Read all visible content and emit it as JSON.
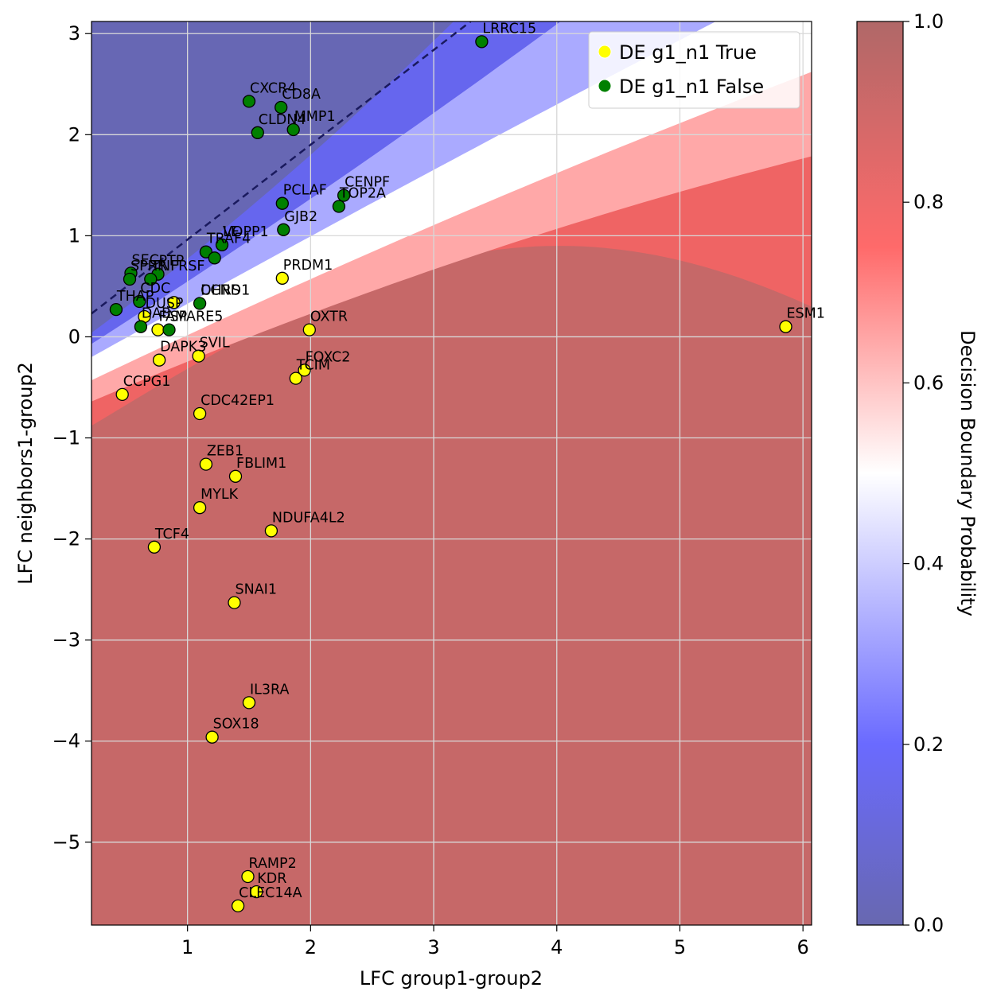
{
  "chart_data": {
    "type": "scatter",
    "xlabel": "LFC group1-group2",
    "ylabel": "LFC neighbors1-group2",
    "xlim": [
      0.22,
      6.07
    ],
    "ylim": [
      -5.82,
      3.12
    ],
    "xticks": [
      1,
      2,
      3,
      4,
      5,
      6
    ],
    "yticks": [
      -5,
      -4,
      -3,
      -2,
      -1,
      0,
      1,
      2,
      3
    ],
    "grid": true,
    "legend_placement": "top-right",
    "colorbar": {
      "label": "Decision Boundary Probability",
      "ticks": [
        "0.0",
        "0.2",
        "0.4",
        "0.6",
        "0.8",
        "1.0"
      ],
      "colormap": "bwr",
      "colors": [
        "#0000ff",
        "#ffffff",
        "#ff0000"
      ]
    },
    "series": [
      {
        "name": "DE g1_n1 True",
        "color": "#ffff00",
        "points": [
          {
            "gene": "ESM1",
            "x": 5.86,
            "y": 0.1
          },
          {
            "gene": "OXTR",
            "x": 1.99,
            "y": 0.07
          },
          {
            "gene": "PRDM1",
            "x": 1.77,
            "y": 0.58
          },
          {
            "gene": "FOXC2",
            "x": 1.95,
            "y": -0.33
          },
          {
            "gene": "TCIM",
            "x": 1.88,
            "y": -0.41
          },
          {
            "gene": "SVIL",
            "x": 1.09,
            "y": -0.19
          },
          {
            "gene": "DAPK3",
            "x": 0.77,
            "y": -0.23
          },
          {
            "gene": "CCPG1",
            "x": 0.47,
            "y": -0.57
          },
          {
            "gene": "CDC42EP1",
            "x": 1.1,
            "y": -0.76
          },
          {
            "gene": "ZEB1",
            "x": 1.15,
            "y": -1.26
          },
          {
            "gene": "FBLIM1",
            "x": 1.39,
            "y": -1.38
          },
          {
            "gene": "MYLK",
            "x": 1.1,
            "y": -1.69
          },
          {
            "gene": "NDUFA4L2",
            "x": 1.68,
            "y": -1.92
          },
          {
            "gene": "TCF4",
            "x": 0.73,
            "y": -2.08
          },
          {
            "gene": "SNAI1",
            "x": 1.38,
            "y": -2.63
          },
          {
            "gene": "IL3RA",
            "x": 1.5,
            "y": -3.62
          },
          {
            "gene": "SOX18",
            "x": 1.2,
            "y": -3.96
          },
          {
            "gene": "RAMP2",
            "x": 1.49,
            "y": -5.34
          },
          {
            "gene": "KDR",
            "x": 1.56,
            "y": -5.49
          },
          {
            "gene": "CLEC14A",
            "x": 1.41,
            "y": -5.63
          },
          {
            "gene": "CCND1",
            "x": 0.89,
            "y": 0.34
          },
          {
            "gene": "DUSP",
            "x": 0.65,
            "y": 0.2
          },
          {
            "gene": "FAM",
            "x": 0.76,
            "y": 0.07
          }
        ]
      },
      {
        "name": "DE g1_n1 False",
        "color": "#008000",
        "points": [
          {
            "gene": "LRRC15",
            "x": 3.39,
            "y": 2.92
          },
          {
            "gene": "CXCR4",
            "x": 1.5,
            "y": 2.33
          },
          {
            "gene": "CD8A",
            "x": 1.76,
            "y": 2.27
          },
          {
            "gene": "MMP1",
            "x": 1.86,
            "y": 2.05
          },
          {
            "gene": "CLDN4",
            "x": 1.57,
            "y": 2.02
          },
          {
            "gene": "CENPF",
            "x": 2.27,
            "y": 1.4
          },
          {
            "gene": "TOP2A",
            "x": 2.23,
            "y": 1.29
          },
          {
            "gene": "PCLAF",
            "x": 1.77,
            "y": 1.32
          },
          {
            "gene": "GJB2",
            "x": 1.78,
            "y": 1.06
          },
          {
            "gene": "VOPP1",
            "x": 1.28,
            "y": 0.91
          },
          {
            "gene": "TRAF4",
            "x": 1.15,
            "y": 0.84
          },
          {
            "gene": "LE",
            "x": 1.22,
            "y": 0.78
          },
          {
            "gene": "SEC",
            "x": 0.54,
            "y": 0.63
          },
          {
            "gene": "SPRR",
            "x": 0.53,
            "y": 0.57
          },
          {
            "gene": "PTP",
            "x": 0.76,
            "y": 0.62
          },
          {
            "gene": "TNFRSF",
            "x": 0.7,
            "y": 0.57
          },
          {
            "gene": "THAP",
            "x": 0.42,
            "y": 0.27
          },
          {
            "gene": "CDC",
            "x": 0.61,
            "y": 0.35
          },
          {
            "gene": "DHRS",
            "x": 1.1,
            "y": 0.33
          },
          {
            "gene": "DAB",
            "x": 0.62,
            "y": 0.1
          },
          {
            "gene": "SPARE5",
            "x": 0.85,
            "y": 0.07
          }
        ]
      }
    ],
    "annotations": [
      {
        "text": "LRRC15",
        "x": 3.39,
        "y": 2.92
      },
      {
        "text": "CXCR4",
        "x": 1.5,
        "y": 2.33
      },
      {
        "text": "CD8A",
        "x": 1.76,
        "y": 2.27
      },
      {
        "text": "MMP1",
        "x": 1.86,
        "y": 2.05
      },
      {
        "text": "CLDN4",
        "x": 1.57,
        "y": 2.02
      },
      {
        "text": "CENPF",
        "x": 2.27,
        "y": 1.4
      },
      {
        "text": "TOP2A",
        "x": 2.23,
        "y": 1.29
      },
      {
        "text": "PCLAF",
        "x": 1.77,
        "y": 1.32
      },
      {
        "text": "GJB2",
        "x": 1.78,
        "y": 1.06
      },
      {
        "text": "VOPP1",
        "x": 1.28,
        "y": 0.91
      },
      {
        "text": "TRAF4",
        "x": 1.15,
        "y": 0.84
      },
      {
        "text": "LE",
        "x": 1.28,
        "y": 0.91
      },
      {
        "text": "PRDM1",
        "x": 1.77,
        "y": 0.58
      },
      {
        "text": "ESM1",
        "x": 5.86,
        "y": 0.1
      },
      {
        "text": "OXTR",
        "x": 1.99,
        "y": 0.07
      },
      {
        "text": "FOXC2",
        "x": 1.95,
        "y": -0.33
      },
      {
        "text": "TCIM",
        "x": 1.88,
        "y": -0.41
      },
      {
        "text": "SVIL",
        "x": 1.09,
        "y": -0.19
      },
      {
        "text": "DAPK3",
        "x": 0.77,
        "y": -0.23
      },
      {
        "text": "CCPG1",
        "x": 0.47,
        "y": -0.57
      },
      {
        "text": "CDC42EP1",
        "x": 1.1,
        "y": -0.76
      },
      {
        "text": "ZEB1",
        "x": 1.15,
        "y": -1.26
      },
      {
        "text": "FBLIM1",
        "x": 1.39,
        "y": -1.38
      },
      {
        "text": "MYLK",
        "x": 1.1,
        "y": -1.69
      },
      {
        "text": "NDUFA4L2",
        "x": 1.68,
        "y": -1.92
      },
      {
        "text": "TCF4",
        "x": 0.73,
        "y": -2.08
      },
      {
        "text": "SNAI1",
        "x": 1.38,
        "y": -2.63
      },
      {
        "text": "IL3RA",
        "x": 1.5,
        "y": -3.62
      },
      {
        "text": "SOX18",
        "x": 1.2,
        "y": -3.96
      },
      {
        "text": "RAMP2",
        "x": 1.49,
        "y": -5.34
      },
      {
        "text": "KDR",
        "x": 1.56,
        "y": -5.49
      },
      {
        "text": "CLEC14A",
        "x": 1.41,
        "y": -5.63
      },
      {
        "text": "CCND1",
        "x": 1.1,
        "y": 0.33
      },
      {
        "text": "SEC",
        "x": 0.54,
        "y": 0.63
      },
      {
        "text": "SPRR",
        "x": 0.53,
        "y": 0.57
      },
      {
        "text": "PTP",
        "x": 0.76,
        "y": 0.62
      },
      {
        "text": "TNFRSF",
        "x": 0.7,
        "y": 0.57
      },
      {
        "text": "THAP",
        "x": 0.42,
        "y": 0.27
      },
      {
        "text": "CDC",
        "x": 0.61,
        "y": 0.35
      },
      {
        "text": "DHRS",
        "x": 1.1,
        "y": 0.33
      },
      {
        "text": "DUSP",
        "x": 0.65,
        "y": 0.2
      },
      {
        "text": "DAB",
        "x": 0.62,
        "y": 0.1
      },
      {
        "text": "FAM",
        "x": 0.76,
        "y": 0.07
      },
      {
        "text": "SPARE5",
        "x": 0.85,
        "y": 0.07
      }
    ]
  }
}
